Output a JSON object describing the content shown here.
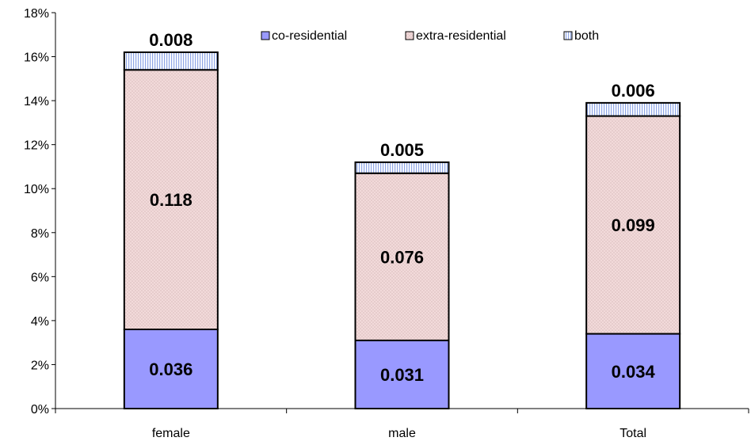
{
  "chart_data": {
    "type": "bar",
    "stacked": true,
    "categories": [
      "female",
      "male",
      "Total"
    ],
    "series": [
      {
        "name": "co-residential",
        "values": [
          0.036,
          0.031,
          0.034
        ],
        "color": "#9999ff",
        "pattern": "none"
      },
      {
        "name": "extra-residential",
        "values": [
          0.118,
          0.076,
          0.099
        ],
        "color": "#f2dada",
        "pattern": "dots"
      },
      {
        "name": "both",
        "values": [
          0.008,
          0.005,
          0.006
        ],
        "color": "#ccd9ff",
        "pattern": "vertical-stripes"
      }
    ],
    "data_labels": [
      [
        "0.036",
        "0.031",
        "0.034"
      ],
      [
        "0.118",
        "0.076",
        "0.099"
      ],
      [
        "0.008",
        "0.005",
        "0.006"
      ]
    ],
    "y_ticks": [
      "0%",
      "2%",
      "4%",
      "6%",
      "8%",
      "10%",
      "12%",
      "14%",
      "16%",
      "18%"
    ],
    "ylim": [
      0,
      0.18
    ],
    "y_tick_step": 0.02,
    "title": "",
    "xlabel": "",
    "ylabel": "",
    "legend_position": "top-right",
    "grid": false
  }
}
